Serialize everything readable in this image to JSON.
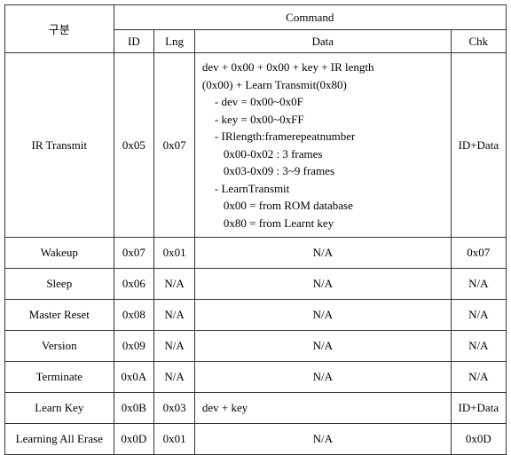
{
  "header": {
    "gubun": "구분",
    "command": "Command",
    "id": "ID",
    "lng": "Lng",
    "data": "Data",
    "chk": "Chk"
  },
  "rows": {
    "r0": {
      "name": "IR Transmit",
      "id": "0x05",
      "lng": "0x07",
      "chk": "ID+Data",
      "d0": "dev + 0x00 + 0x00 + key + IR length",
      "d1": "(0x00) + Learn   Transmit(0x80)",
      "d2": "- dev = 0x00~0x0F",
      "d3": "- key     = 0x00~0xFF",
      "d4": "- IRlength:framerepeatnumber",
      "d5": "0x00-0x02 : 3 frames",
      "d6": "0x03-0x09 : 3~9 frames",
      "d7": "- LearnTransmit",
      "d8": "0x00 = from ROM database",
      "d9": "0x80 = from Learnt key"
    },
    "r1": {
      "name": "Wakeup",
      "id": "0x07",
      "lng": "0x01",
      "data": "N/A",
      "chk": "0x07"
    },
    "r2": {
      "name": "Sleep",
      "id": "0x06",
      "lng": "N/A",
      "data": "N/A",
      "chk": "N/A"
    },
    "r3": {
      "name": "Master Reset",
      "id": "0x08",
      "lng": "N/A",
      "data": "N/A",
      "chk": "N/A"
    },
    "r4": {
      "name": "Version",
      "id": "0x09",
      "lng": "N/A",
      "data": "N/A",
      "chk": "N/A"
    },
    "r5": {
      "name": "Terminate",
      "id": "0x0A",
      "lng": "N/A",
      "data": "N/A",
      "chk": "N/A"
    },
    "r6": {
      "name": "Learn Key",
      "id": "0x0B",
      "lng": "0x03",
      "data": "dev + key",
      "chk": "ID+Data"
    },
    "r7": {
      "name": "Learning All Erase",
      "id": "0x0D",
      "lng": "0x01",
      "data": "N/A",
      "chk": "0x0D"
    }
  }
}
